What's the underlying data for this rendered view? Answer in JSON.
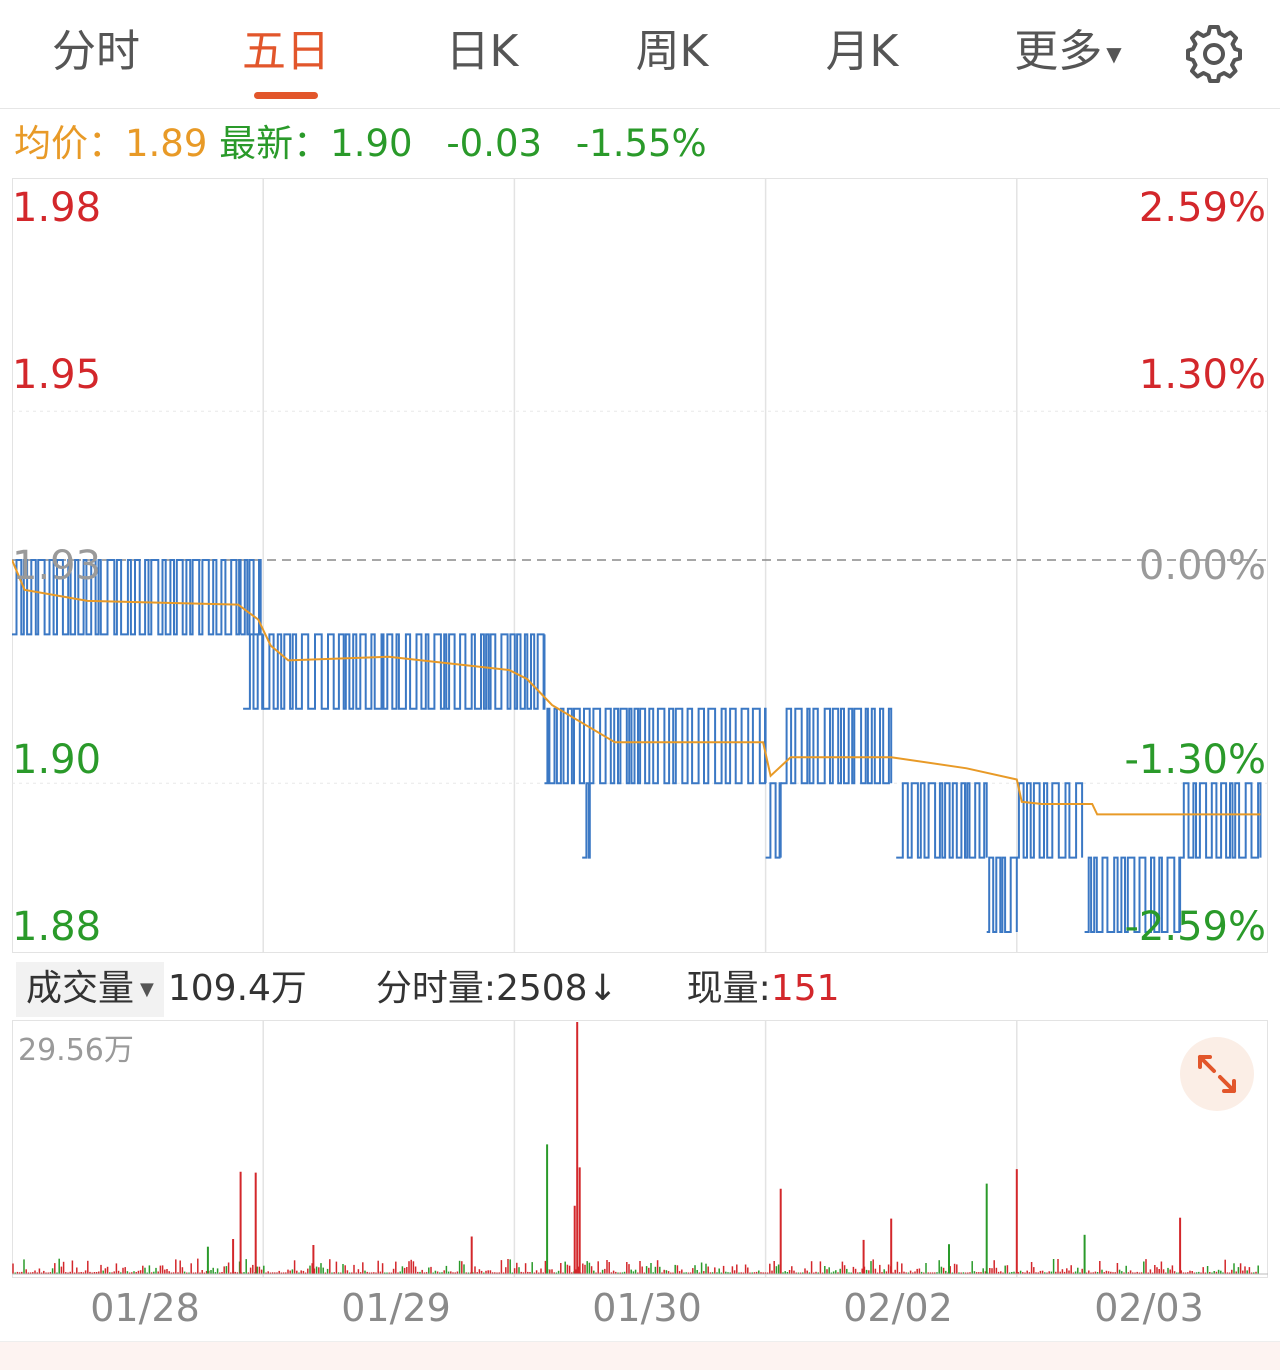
{
  "tabs": [
    {
      "label": "分时"
    },
    {
      "label": "五日"
    },
    {
      "label": "日K"
    },
    {
      "label": "周K"
    },
    {
      "label": "月K"
    },
    {
      "label": "更多"
    }
  ],
  "active_tab": "五日",
  "info": {
    "avg_label": "均价：",
    "avg_value": "1.89",
    "latest_label": "最新：",
    "latest_value": "1.90",
    "change": "-0.03",
    "change_pct": "-1.55%"
  },
  "volume_bar": {
    "selector_label": "成交量",
    "total": "109.4万",
    "minute_label": "分时量:",
    "minute_value": "2508",
    "minute_arrow": "↓",
    "current_label": "现量:",
    "current_value": "151"
  },
  "colors": {
    "up": "#d3272b",
    "down": "#2a9a2a",
    "price_line": "#3b78c4",
    "avg_line": "#e89a27",
    "accent": "#e2562b"
  },
  "icons": [
    "gear-icon",
    "expand-icon",
    "caret-down-icon"
  ],
  "chart_data": [
    {
      "type": "line",
      "x": [
        "01/28",
        "01/29",
        "01/30",
        "02/02",
        "02/03"
      ],
      "y_left_ticks": [
        "1.98",
        "1.95",
        "1.93",
        "1.90",
        "1.88"
      ],
      "y_right_ticks": [
        "2.59%",
        "1.30%",
        "0.00%",
        "-1.30%",
        "-2.59%"
      ],
      "ylim": [
        1.88,
        1.98
      ],
      "reference_price": 1.93,
      "series": [
        {
          "name": "price",
          "segments": [
            {
              "day": 0,
              "from": 0.0,
              "to": 0.91,
              "levels": [
                1.93,
                1.92
              ]
            },
            {
              "day": 0,
              "from": 0.91,
              "to": 0.99,
              "levels": [
                1.93,
                1.92
              ]
            },
            {
              "day": 0,
              "from": 0.92,
              "to": 1.0,
              "levels": [
                1.92,
                1.91
              ]
            },
            {
              "day": 1,
              "from": 0.0,
              "to": 1.12,
              "levels": [
                1.92,
                1.91
              ]
            },
            {
              "day": 2,
              "from": 0.12,
              "to": 1.0,
              "levels": [
                1.91,
                1.9
              ]
            },
            {
              "day": 2,
              "from": 0.27,
              "to": 0.3,
              "levels": [
                1.9,
                1.89
              ]
            },
            {
              "day": 3,
              "from": 0.0,
              "to": 0.06,
              "levels": [
                1.9,
                1.89
              ]
            },
            {
              "day": 3,
              "from": 0.06,
              "to": 0.5,
              "levels": [
                1.91,
                1.9
              ]
            },
            {
              "day": 3,
              "from": 0.52,
              "to": 0.88,
              "levels": [
                1.9,
                1.89
              ]
            },
            {
              "day": 3,
              "from": 0.88,
              "to": 1.0,
              "levels": [
                1.89,
                1.88
              ]
            },
            {
              "day": 4,
              "from": 0.0,
              "to": 0.26,
              "levels": [
                1.9,
                1.89
              ]
            },
            {
              "day": 4,
              "from": 0.27,
              "to": 0.65,
              "levels": [
                1.89,
                1.88
              ]
            },
            {
              "day": 4,
              "from": 0.65,
              "to": 0.97,
              "levels": [
                1.9,
                1.89
              ]
            }
          ]
        },
        {
          "name": "avg",
          "points": [
            [
              0.0,
              1.93
            ],
            [
              0.05,
              1.926
            ],
            [
              0.3,
              1.9245
            ],
            [
              0.9,
              1.924
            ],
            [
              0.98,
              1.922
            ],
            [
              1.03,
              1.9185
            ],
            [
              1.1,
              1.9165
            ],
            [
              1.5,
              1.917
            ],
            [
              1.98,
              1.9152
            ],
            [
              2.05,
              1.914
            ],
            [
              2.15,
              1.9105
            ],
            [
              2.4,
              1.9055
            ],
            [
              2.99,
              1.9055
            ],
            [
              3.02,
              1.901
            ],
            [
              3.1,
              1.9035
            ],
            [
              3.5,
              1.9035
            ],
            [
              3.8,
              1.902
            ],
            [
              4.0,
              1.9005
            ],
            [
              4.02,
              1.8975
            ],
            [
              4.1,
              1.8972
            ],
            [
              4.3,
              1.8972
            ],
            [
              4.32,
              1.8958
            ],
            [
              4.97,
              1.8958
            ]
          ]
        }
      ]
    },
    {
      "type": "bar",
      "title": "成交量",
      "max_label": "29.56万",
      "ylim": [
        0,
        29.56
      ],
      "unit": "万",
      "spikes": [
        {
          "t": 0.91,
          "v": 12.0,
          "dir": "up"
        },
        {
          "t": 0.97,
          "v": 11.9,
          "dir": "up"
        },
        {
          "t": 0.88,
          "v": 4.1,
          "dir": "up"
        },
        {
          "t": 0.78,
          "v": 3.2,
          "dir": "down"
        },
        {
          "t": 1.2,
          "v": 3.4,
          "dir": "up"
        },
        {
          "t": 1.83,
          "v": 4.4,
          "dir": "up"
        },
        {
          "t": 2.13,
          "v": 15.2,
          "dir": "down"
        },
        {
          "t": 2.25,
          "v": 29.56,
          "dir": "up"
        },
        {
          "t": 2.26,
          "v": 12.5,
          "dir": "up"
        },
        {
          "t": 2.24,
          "v": 8.0,
          "dir": "up"
        },
        {
          "t": 3.06,
          "v": 10.0,
          "dir": "up"
        },
        {
          "t": 3.39,
          "v": 4.0,
          "dir": "up"
        },
        {
          "t": 3.5,
          "v": 6.5,
          "dir": "up"
        },
        {
          "t": 3.73,
          "v": 3.5,
          "dir": "down"
        },
        {
          "t": 3.88,
          "v": 10.6,
          "dir": "down"
        },
        {
          "t": 4.0,
          "v": 12.3,
          "dir": "up"
        },
        {
          "t": 4.27,
          "v": 4.6,
          "dir": "down"
        },
        {
          "t": 4.65,
          "v": 6.6,
          "dir": "up"
        }
      ]
    }
  ]
}
